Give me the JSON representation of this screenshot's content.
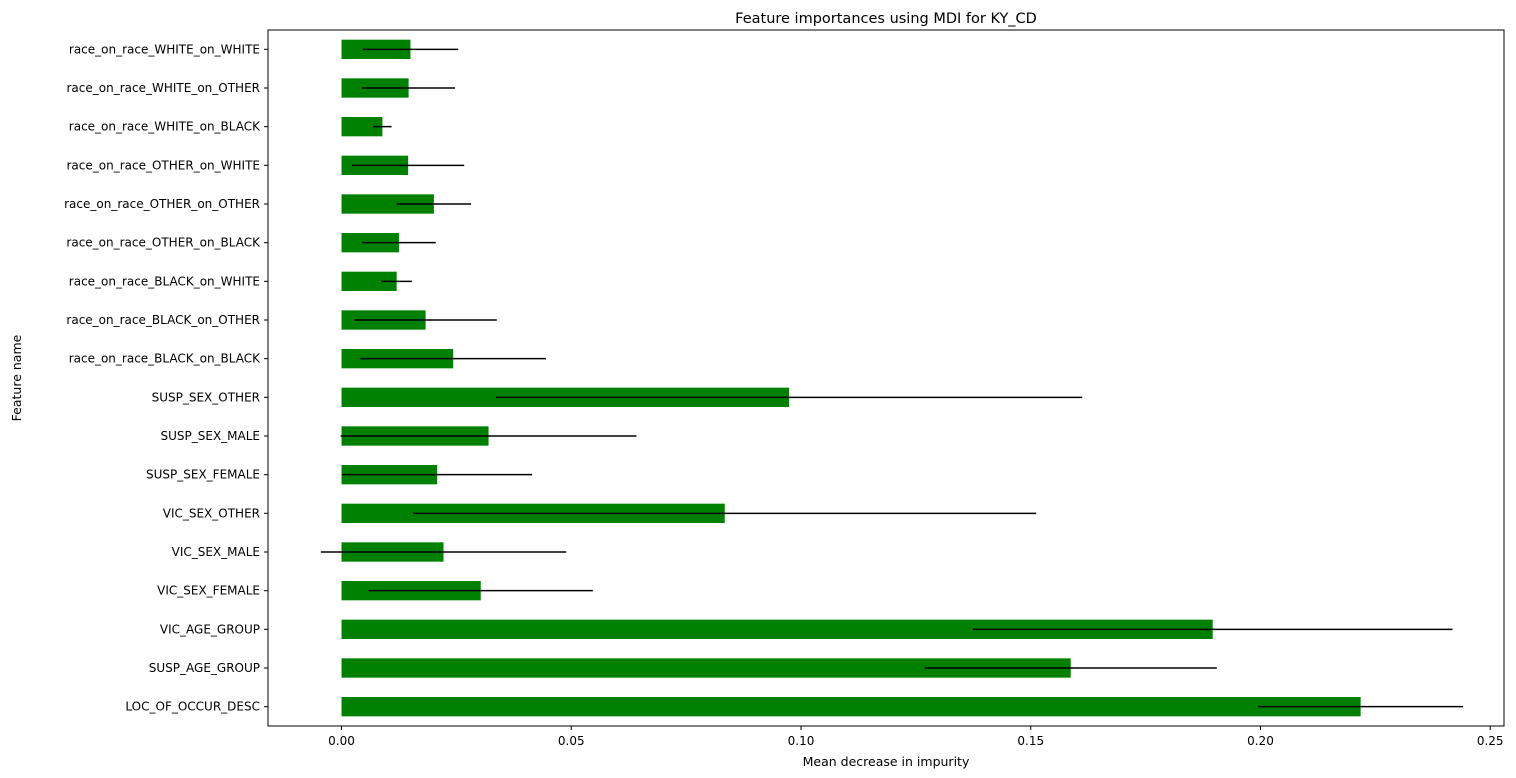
{
  "chart_data": {
    "type": "bar",
    "orientation": "horizontal",
    "title": "Feature importances using MDI for KY_CD",
    "xlabel": "Mean decrease in impurity",
    "ylabel": "Feature name",
    "xlim": [
      -0.016,
      0.253
    ],
    "xticks": [
      0.0,
      0.05,
      0.1,
      0.15,
      0.2,
      0.25
    ],
    "xtick_labels": [
      "0.00",
      "0.05",
      "0.10",
      "0.15",
      "0.20",
      "0.25"
    ],
    "grid": false,
    "bar_color": "#008000",
    "errorbar_color": "#000000",
    "categories": [
      "LOC_OF_OCCUR_DESC",
      "SUSP_AGE_GROUP",
      "VIC_AGE_GROUP",
      "VIC_SEX_FEMALE",
      "VIC_SEX_MALE",
      "VIC_SEX_OTHER",
      "SUSP_SEX_FEMALE",
      "SUSP_SEX_MALE",
      "SUSP_SEX_OTHER",
      "race_on_race_BLACK_on_BLACK",
      "race_on_race_BLACK_on_OTHER",
      "race_on_race_BLACK_on_WHITE",
      "race_on_race_OTHER_on_BLACK",
      "race_on_race_OTHER_on_OTHER",
      "race_on_race_OTHER_on_WHITE",
      "race_on_race_WHITE_on_BLACK",
      "race_on_race_WHITE_on_OTHER",
      "race_on_race_WHITE_on_WHITE"
    ],
    "values": [
      0.2218,
      0.1587,
      0.1896,
      0.0303,
      0.0222,
      0.0834,
      0.0208,
      0.032,
      0.0974,
      0.0243,
      0.0183,
      0.012,
      0.0125,
      0.0201,
      0.0145,
      0.0089,
      0.0146,
      0.015
    ],
    "errors": [
      0.0223,
      0.0318,
      0.0522,
      0.0244,
      0.0267,
      0.0678,
      0.0207,
      0.0322,
      0.0638,
      0.0202,
      0.0155,
      0.0033,
      0.008,
      0.0081,
      0.0122,
      0.002,
      0.0101,
      0.0104
    ]
  }
}
